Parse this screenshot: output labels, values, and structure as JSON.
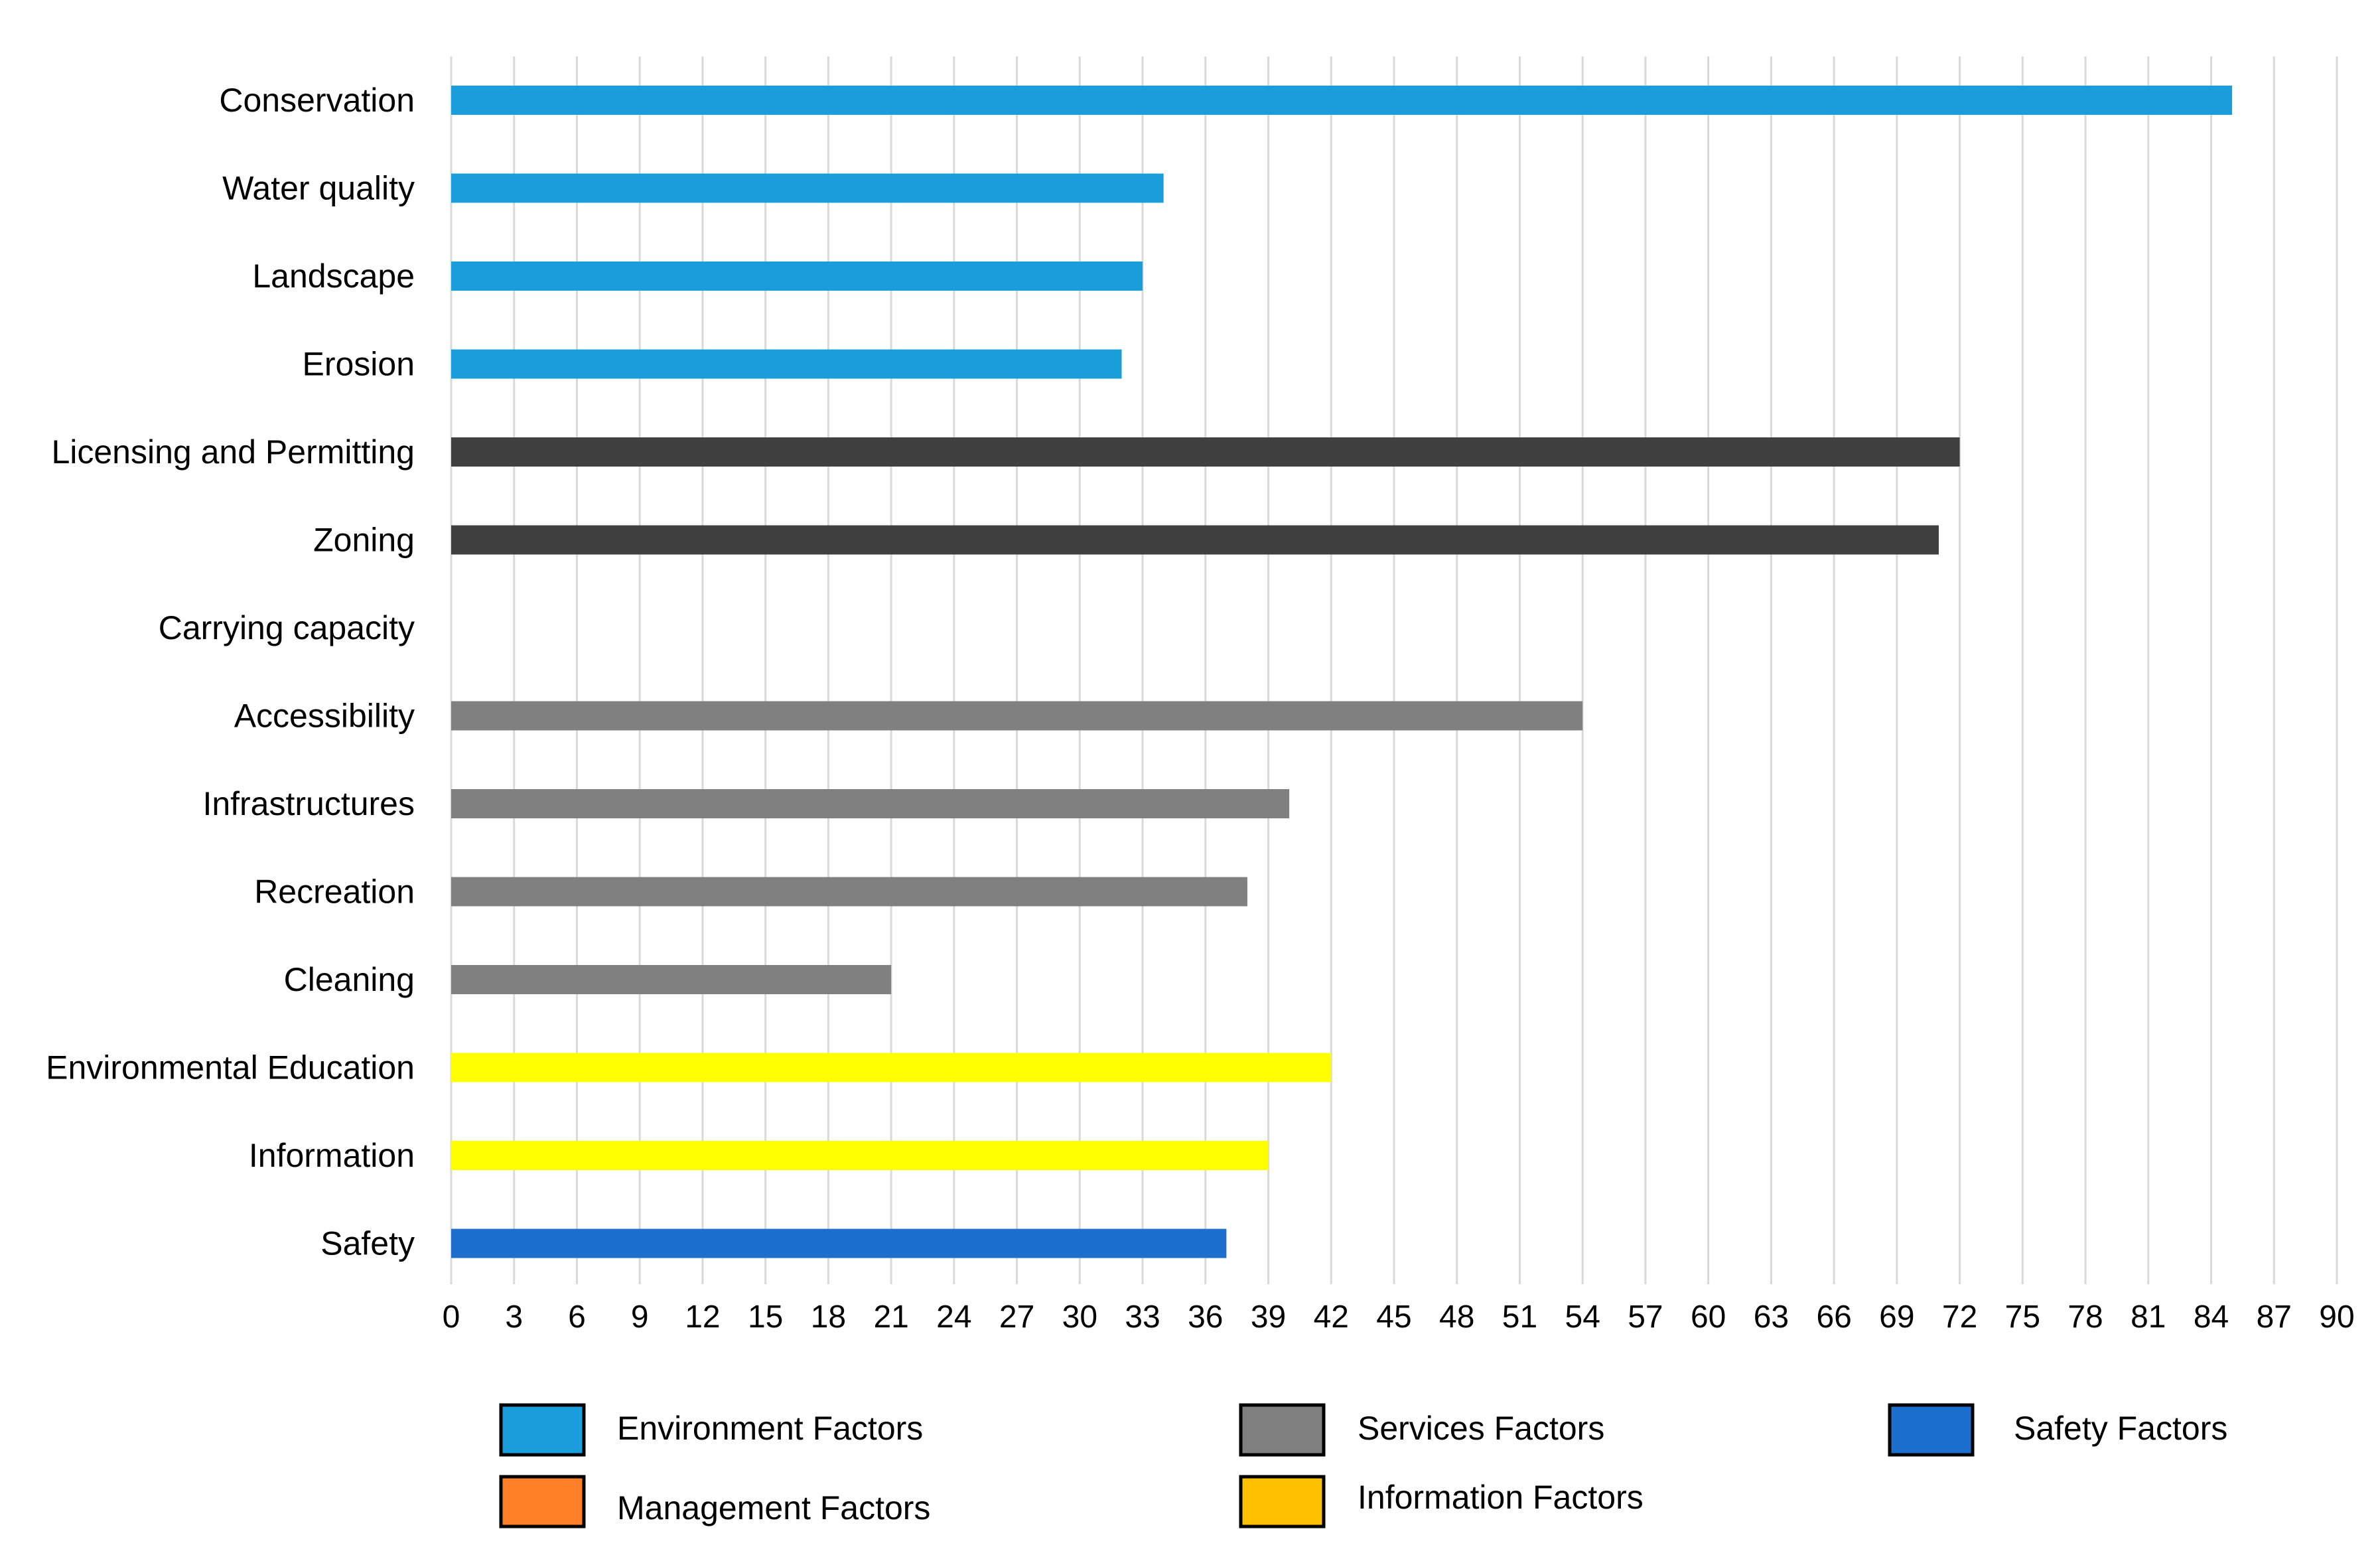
{
  "chart_data": {
    "type": "bar",
    "orientation": "horizontal",
    "title": "",
    "xlabel": "",
    "ylabel": "",
    "xlim": [
      0,
      90
    ],
    "x_ticks": [
      0,
      3,
      6,
      9,
      12,
      15,
      18,
      21,
      24,
      27,
      30,
      33,
      36,
      39,
      42,
      45,
      48,
      51,
      54,
      57,
      60,
      63,
      66,
      69,
      72,
      75,
      78,
      81,
      84,
      87,
      90
    ],
    "grid": "vertical",
    "legend_position": "bottom",
    "categories": [
      "Conservation",
      "Water quality",
      "Landscape",
      "Erosion",
      "Licensing and Permitting",
      "Zoning",
      "Carrying capacity",
      "Accessibility",
      "Infrastructures",
      "Recreation",
      "Cleaning",
      "Environmental Education",
      "Information",
      "Safety"
    ],
    "values": [
      85,
      34,
      33,
      32,
      72,
      71,
      0,
      54,
      40,
      38,
      21,
      42,
      39,
      37
    ],
    "bar_colors": [
      "#1a9ddb",
      "#1a9ddb",
      "#1a9ddb",
      "#1a9ddb",
      "#404040",
      "#404040",
      "#404040",
      "#808080",
      "#808080",
      "#808080",
      "#808080",
      "#ffff00",
      "#ffff00",
      "#1c6fcc"
    ],
    "legend": [
      {
        "label": "Environment Factors",
        "color": "#1a9ddb"
      },
      {
        "label": "Services Factors",
        "color": "#808080"
      },
      {
        "label": "Safety Factors",
        "color": "#1c6fcc"
      },
      {
        "label": "Management Factors",
        "color": "#ff7f27"
      },
      {
        "label": "Information Factors",
        "color": "#ffc000"
      }
    ]
  }
}
